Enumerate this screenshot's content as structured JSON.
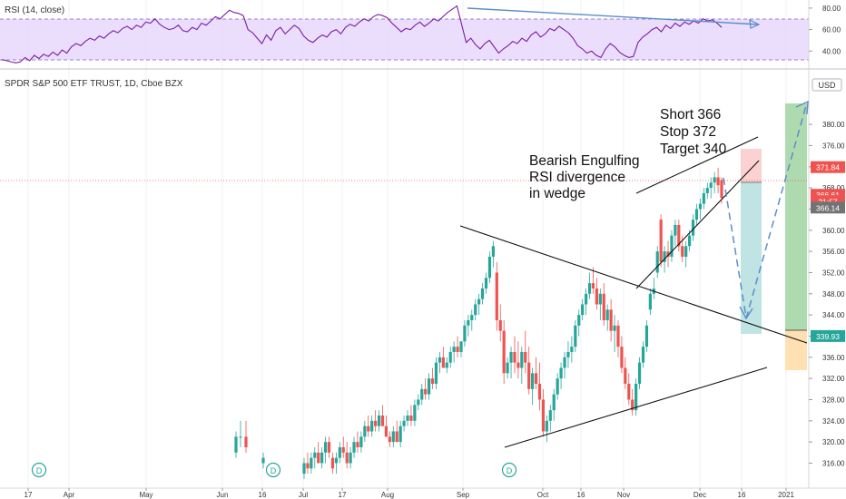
{
  "rsi_panel": {
    "title": "RSI (14, close)",
    "ticks": [
      "80.00",
      "60.00",
      "40.00"
    ],
    "tick_values": [
      80,
      60,
      40
    ],
    "band": [
      30,
      70
    ],
    "ylim": [
      25,
      85
    ],
    "line_color": "#7b1fa2",
    "band_color": "#e8d7fb",
    "divergence_line_color": "#5b8dc9"
  },
  "price_panel": {
    "title": "SPDR S&P 500 ETF TRUST, 1D, Cboe BZX",
    "currency": "USD",
    "ticks": [
      "380.00",
      "376.00",
      "372.00",
      "368.00",
      "364.00",
      "360.00",
      "356.00",
      "352.00",
      "348.00",
      "344.00",
      "340.00",
      "336.00",
      "332.00",
      "328.00",
      "324.00",
      "320.00",
      "316.00"
    ],
    "tick_values": [
      380,
      376,
      372,
      368,
      364,
      360,
      356,
      352,
      348,
      344,
      340,
      336,
      332,
      328,
      324,
      320,
      316
    ],
    "ylim": [
      314.2,
      384.3
    ],
    "price_badges": [
      {
        "label": "371.84",
        "value": 371.84,
        "color": "#ef5350"
      },
      {
        "label": "366.61",
        "value": 366.61,
        "color": "#ef5350"
      },
      {
        "label": "21:57",
        "value": 365.4,
        "color": "#ef5350"
      },
      {
        "label": "366.14",
        "value": 364.2,
        "color": "#737375"
      },
      {
        "label": "339.93",
        "value": 339.93,
        "color": "#26a69a"
      }
    ],
    "up_color": "#26a69a",
    "down_color": "#ef5350",
    "dividend_marker": "D"
  },
  "x_axis": {
    "labels": [
      "17",
      "Apr",
      "May",
      "Jun",
      "16",
      "Jul",
      "17",
      "Aug",
      "Sep",
      "Oct",
      "16",
      "Nov",
      "Dec",
      "16",
      "2021"
    ]
  },
  "annotations": {
    "trade_setup": [
      "Short  366",
      "Stop  372",
      "Target 340"
    ],
    "pattern_note": [
      "Bearish Engulfing",
      "RSI divergence",
      "in wedge"
    ]
  },
  "chart_data": {
    "type": "candlestick",
    "title": "SPDR S&P 500 ETF TRUST, 1D, Cboe BZX",
    "ylabel": "USD",
    "ylim": [
      314.2,
      384.3
    ],
    "candles_ohlc": [
      [
        318,
        322,
        317,
        321
      ],
      [
        321,
        324,
        319,
        321
      ],
      [
        321,
        324,
        318,
        319
      ],
      [
        316,
        318,
        315,
        317
      ],
      [
        314,
        317,
        313,
        316
      ],
      [
        316,
        318,
        314,
        315
      ],
      [
        315,
        318,
        314,
        317
      ],
      [
        317,
        319,
        315,
        318
      ],
      [
        318,
        320,
        316,
        316
      ],
      [
        316,
        319,
        315,
        318
      ],
      [
        318,
        321,
        316,
        320
      ],
      [
        320,
        321,
        317,
        318
      ],
      [
        317,
        318,
        314,
        315
      ],
      [
        316,
        318,
        314,
        317
      ],
      [
        317,
        320,
        316,
        319
      ],
      [
        319,
        321,
        317,
        318
      ],
      [
        318,
        320,
        315,
        316
      ],
      [
        316,
        319,
        315,
        318
      ],
      [
        318,
        321,
        317,
        320
      ],
      [
        320,
        322,
        318,
        319
      ],
      [
        319,
        322,
        318,
        321
      ],
      [
        321,
        324,
        320,
        323
      ],
      [
        323,
        325,
        321,
        322
      ],
      [
        322,
        325,
        321,
        324
      ],
      [
        324,
        326,
        322,
        323
      ],
      [
        323,
        326,
        322,
        325
      ],
      [
        325,
        327,
        323,
        323
      ],
      [
        323,
        325,
        321,
        321
      ],
      [
        321,
        322,
        319,
        320
      ],
      [
        320,
        323,
        319,
        322
      ],
      [
        322,
        324,
        320,
        320
      ],
      [
        320,
        324,
        319,
        323
      ],
      [
        323,
        325,
        322,
        324
      ],
      [
        324,
        326,
        323,
        325
      ],
      [
        325,
        327,
        323,
        324
      ],
      [
        324,
        328,
        323,
        327
      ],
      [
        327,
        329,
        326,
        328
      ],
      [
        328,
        331,
        327,
        330
      ],
      [
        330,
        332,
        328,
        329
      ],
      [
        329,
        333,
        328,
        332
      ],
      [
        332,
        334,
        330,
        331
      ],
      [
        331,
        336,
        330,
        335
      ],
      [
        335,
        337,
        333,
        336
      ],
      [
        336,
        338,
        334,
        334
      ],
      [
        334,
        336,
        333,
        335
      ],
      [
        335,
        338,
        334,
        337
      ],
      [
        337,
        339,
        335,
        338
      ],
      [
        338,
        340,
        336,
        337
      ],
      [
        337,
        339,
        336,
        339
      ],
      [
        339,
        343,
        338,
        342
      ],
      [
        342,
        344,
        340,
        343
      ],
      [
        343,
        345,
        341,
        344
      ],
      [
        344,
        347,
        343,
        346
      ],
      [
        346,
        348,
        344,
        347
      ],
      [
        347,
        350,
        346,
        349
      ],
      [
        349,
        352,
        348,
        351
      ],
      [
        351,
        356,
        350,
        355
      ],
      [
        355,
        358,
        353,
        357
      ],
      [
        352,
        354,
        341,
        343
      ],
      [
        343,
        346,
        339,
        341
      ],
      [
        341,
        343,
        331,
        333
      ],
      [
        333,
        336,
        332,
        335
      ],
      [
        335,
        338,
        332,
        337
      ],
      [
        337,
        340,
        333,
        335
      ],
      [
        335,
        339,
        332,
        334
      ],
      [
        334,
        338,
        331,
        337
      ],
      [
        337,
        341,
        333,
        335
      ],
      [
        335,
        338,
        329,
        330
      ],
      [
        330,
        334,
        327,
        333
      ],
      [
        333,
        336,
        330,
        331
      ],
      [
        331,
        335,
        326,
        328
      ],
      [
        328,
        330,
        321,
        322
      ],
      [
        322,
        325,
        320,
        324
      ],
      [
        324,
        327,
        322,
        326
      ],
      [
        326,
        330,
        324,
        329
      ],
      [
        329,
        333,
        328,
        332
      ],
      [
        332,
        335,
        330,
        334
      ],
      [
        334,
        337,
        332,
        336
      ],
      [
        336,
        339,
        334,
        337
      ],
      [
        337,
        340,
        335,
        338
      ],
      [
        338,
        343,
        337,
        342
      ],
      [
        342,
        345,
        340,
        344
      ],
      [
        344,
        347,
        343,
        346
      ],
      [
        346,
        349,
        344,
        348
      ],
      [
        348,
        352,
        347,
        350
      ],
      [
        350,
        353,
        348,
        349
      ],
      [
        349,
        351,
        345,
        346
      ],
      [
        346,
        349,
        343,
        348
      ],
      [
        348,
        350,
        342,
        343
      ],
      [
        343,
        346,
        341,
        345
      ],
      [
        345,
        347,
        339,
        341
      ],
      [
        341,
        344,
        337,
        342
      ],
      [
        342,
        343,
        336,
        338
      ],
      [
        338,
        340,
        333,
        334
      ],
      [
        334,
        336,
        330,
        331
      ],
      [
        331,
        333,
        327,
        328
      ],
      [
        328,
        330,
        325,
        326
      ],
      [
        326,
        332,
        325,
        331
      ],
      [
        331,
        336,
        330,
        335
      ],
      [
        335,
        339,
        334,
        338
      ],
      [
        338,
        343,
        337,
        342
      ],
      [
        345,
        349,
        344,
        348
      ],
      [
        348,
        351,
        347,
        349
      ],
      [
        352,
        357,
        351,
        356
      ],
      [
        362,
        363,
        353,
        354
      ],
      [
        354,
        357,
        352,
        356
      ],
      [
        356,
        358,
        353,
        355
      ],
      [
        355,
        360,
        354,
        359
      ],
      [
        359,
        362,
        357,
        361
      ],
      [
        361,
        362,
        356,
        357
      ],
      [
        357,
        359,
        354,
        355
      ],
      [
        355,
        358,
        353,
        357
      ],
      [
        357,
        360,
        356,
        359
      ],
      [
        359,
        363,
        358,
        362
      ],
      [
        362,
        365,
        361,
        364
      ],
      [
        364,
        366,
        362,
        365
      ],
      [
        365,
        368,
        364,
        367
      ],
      [
        367,
        369,
        366,
        368
      ],
      [
        368,
        370,
        366,
        369
      ],
      [
        369,
        371,
        367,
        370
      ],
      [
        370,
        371.8,
        367,
        368.5
      ],
      [
        369.5,
        370,
        365,
        366.1
      ]
    ],
    "rsi_values": [
      32,
      31,
      30,
      29,
      30,
      34,
      31,
      36,
      33,
      37,
      35,
      39,
      36,
      41,
      38,
      44,
      47,
      45,
      49,
      52,
      50,
      54,
      52,
      56,
      59,
      57,
      61,
      63,
      60,
      64,
      62,
      67,
      66,
      70,
      65,
      62,
      60,
      61,
      64,
      59,
      58,
      62,
      60,
      66,
      64,
      68,
      72,
      70,
      74,
      78,
      76,
      75,
      73,
      60,
      57,
      52,
      47,
      55,
      50,
      59,
      62,
      56,
      60,
      64,
      61,
      54,
      50,
      48,
      52,
      55,
      53,
      58,
      60,
      56,
      62,
      65,
      63,
      67,
      70,
      68,
      72,
      74,
      73,
      71,
      66,
      62,
      58,
      61,
      60,
      64,
      67,
      63,
      66,
      70,
      68,
      72,
      76,
      79,
      82,
      65,
      48,
      52,
      46,
      42,
      47,
      50,
      44,
      38,
      42,
      45,
      49,
      47,
      52,
      49,
      55,
      58,
      53,
      56,
      61,
      59,
      63,
      60,
      57,
      52,
      45,
      42,
      38,
      40,
      36,
      34,
      42,
      47,
      44,
      39,
      36,
      34,
      35,
      48,
      53,
      56,
      60,
      62,
      58,
      64,
      61,
      66,
      63,
      67,
      65,
      68,
      66,
      70,
      68,
      69,
      66,
      62
    ],
    "rsi_divergence": {
      "from": 82,
      "to": 70
    },
    "annotations": [
      {
        "type": "trendline",
        "from": [
          359,
          358
        ],
        "to": [
          342,
          339
        ]
      },
      {
        "type": "trendline",
        "from": [
          320,
          320
        ],
        "to": [
          334,
          334
        ]
      },
      {
        "type": "rising_wedge_upper",
        "from": [
          363,
          363
        ],
        "to": [
          373,
          373
        ]
      },
      {
        "type": "rising_wedge_lower",
        "from": [
          348,
          348
        ],
        "to": [
          371,
          371
        ]
      },
      {
        "type": "short_position",
        "entry": 366,
        "stop": 372,
        "target": 340
      },
      {
        "type": "projection",
        "path": [
          366.6,
          340.5,
          380
        ]
      }
    ]
  }
}
